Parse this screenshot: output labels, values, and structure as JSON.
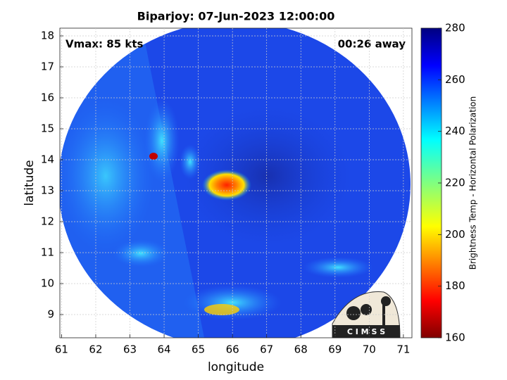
{
  "chart_data": {
    "type": "map",
    "title": "Biparjoy: 07-Jun-2023 12:00:00",
    "annotations": {
      "left": "Vmax: 85 kts",
      "right": "00:26 away"
    },
    "x_label": "longitude",
    "y_label": "latitude",
    "xlim": [
      60.95,
      71.25
    ],
    "ylim": [
      8.25,
      18.25
    ],
    "xticks": [
      61,
      62,
      63,
      64,
      65,
      66,
      67,
      68,
      69,
      70,
      71
    ],
    "yticks": [
      9,
      10,
      11,
      12,
      13,
      14,
      15,
      16,
      17,
      18
    ],
    "grid": true,
    "colorbar": {
      "label": "Brightness Temp - Horizontal Polarization",
      "lim": [
        160,
        280
      ],
      "ticks": [
        160,
        180,
        200,
        220,
        240,
        260,
        280
      ]
    },
    "logo": "C I M S S"
  }
}
